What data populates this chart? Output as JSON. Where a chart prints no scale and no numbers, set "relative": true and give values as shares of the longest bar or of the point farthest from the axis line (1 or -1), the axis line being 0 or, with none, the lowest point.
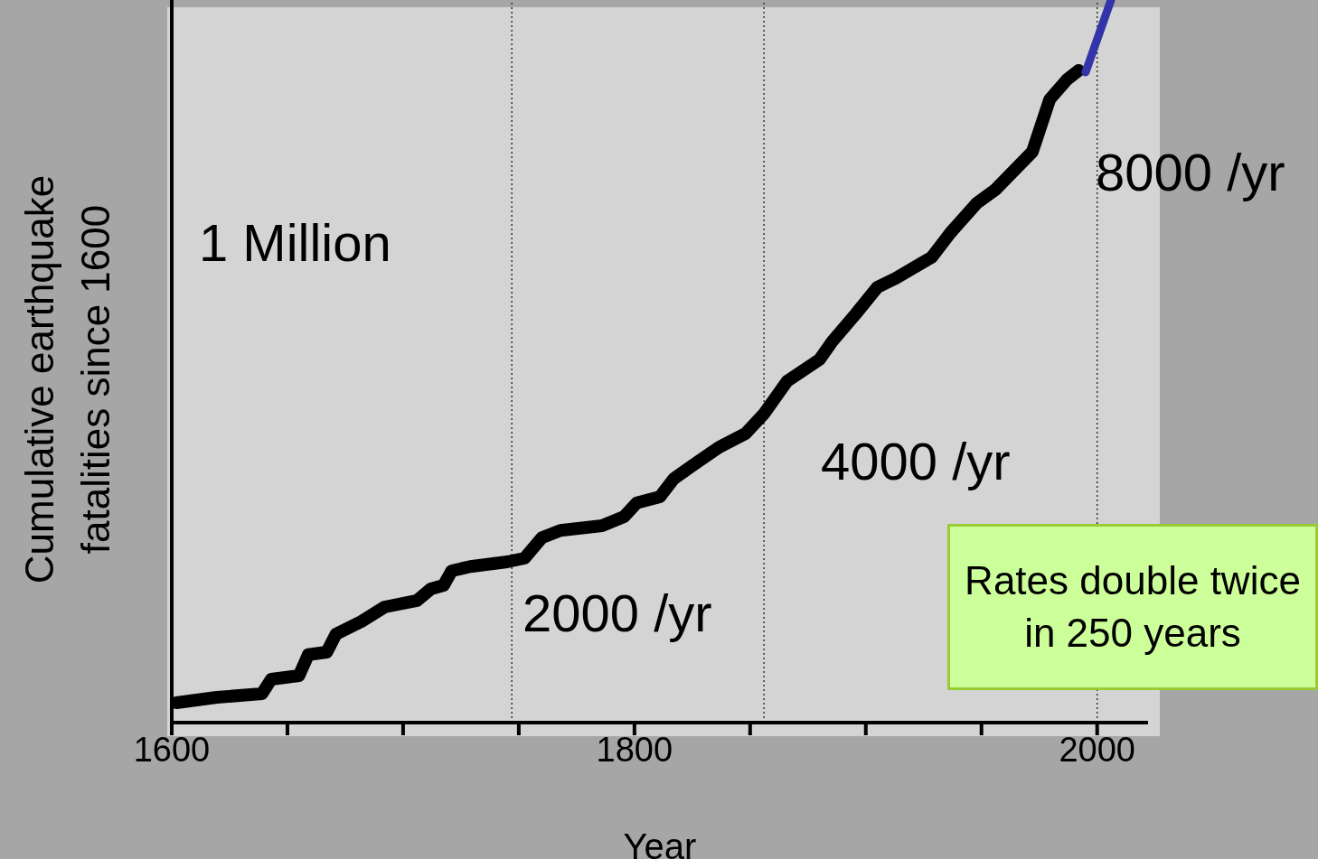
{
  "chart_data": {
    "type": "line",
    "relative": true,
    "xlabel": "Year",
    "ylabel": "Cumulative earthquake\nfatalities since 1600",
    "xlim": [
      1600,
      2022
    ],
    "xticks": [
      1600,
      {
        "value": 1650,
        "label": null
      },
      {
        "value": 1700,
        "label": null
      },
      {
        "value": 1750,
        "label": null
      },
      1800,
      {
        "value": 1850,
        "label": null
      },
      {
        "value": 1900,
        "label": null
      },
      {
        "value": 1950,
        "label": null
      },
      2000
    ],
    "series": [
      {
        "color": "#000000",
        "x": [
          1602,
          1619.5,
          1639,
          1643,
          1655,
          1659,
          1667,
          1671,
          1682,
          1692,
          1706,
          1712,
          1717.5,
          1721,
          1729,
          1745,
          1752.5,
          1760,
          1768,
          1786,
          1795.5,
          1801,
          1811,
          1817,
          1827,
          1836.5,
          1848,
          1856,
          1866,
          1880,
          1885.5,
          1895.5,
          1905,
          1913,
          1928.5,
          1936.5,
          1948,
          1956,
          1972,
          1979.5,
          1987,
          1992
        ],
        "values": [
          0.0275,
          0.035,
          0.04,
          0.06,
          0.065,
          0.094,
          0.0975,
          0.1225,
          0.14,
          0.16,
          0.169,
          0.185,
          0.19,
          0.21,
          0.216,
          0.2225,
          0.2275,
          0.256,
          0.266,
          0.2725,
          0.285,
          0.304,
          0.3125,
          0.3375,
          0.36,
          0.381,
          0.4,
          0.4275,
          0.4725,
          0.5025,
          0.5275,
          0.565,
          0.6025,
          0.615,
          0.644,
          0.6775,
          0.719,
          0.7375,
          0.79,
          0.8625,
          0.89,
          0.9025
        ]
      },
      {
        "color": "#3333aa",
        "x": [
          1995,
          2006
        ],
        "values": [
          0.9,
          1
        ]
      }
    ],
    "ref_lines": [
      {
        "axis": "x",
        "value": 1747,
        "color": "#333333",
        "line_style": "dotted"
      },
      {
        "axis": "x",
        "value": 1856,
        "color": "#333333",
        "line_style": "dotted"
      },
      {
        "axis": "x",
        "value": 2000,
        "color": "#333333",
        "line_style": "dotted"
      }
    ],
    "annotations": [
      "1 Million",
      "2000 /yr",
      "4000 /yr",
      "8000 /yr",
      "Rates double twice in 250 years"
    ],
    "legend": false,
    "grid": false,
    "marker": "none",
    "line_style": "solid"
  }
}
